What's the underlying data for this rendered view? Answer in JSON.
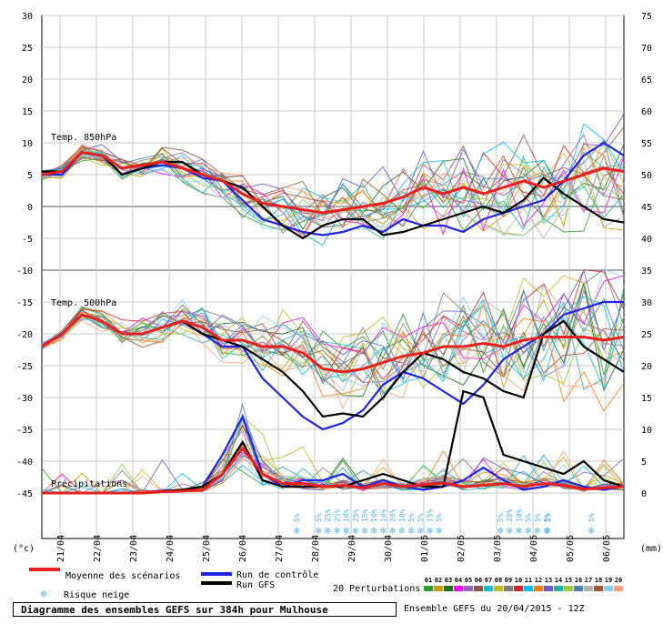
{
  "chart_data": {
    "type": "line",
    "title": "Diagramme des ensembles GEFS sur 384h pour Mulhouse",
    "source": "Ensemble GEFS du 20/04/2015 - 12Z",
    "left_axis": {
      "unit": "(°c)",
      "ticks": [
        30,
        25,
        20,
        15,
        10,
        5,
        0,
        -5,
        -10,
        -15,
        -20,
        -25,
        -30,
        -35,
        -40,
        -45
      ]
    },
    "right_axis": {
      "unit": "(mm)",
      "ticks": [
        75,
        70,
        65,
        60,
        55,
        50,
        45,
        40,
        35,
        30,
        25,
        20,
        15,
        10,
        5,
        0
      ]
    },
    "x_labels": [
      "21/04",
      "22/04",
      "23/04",
      "24/04",
      "25/04",
      "26/04",
      "27/04",
      "28/04",
      "29/04",
      "30/04",
      "01/05",
      "02/05",
      "03/05",
      "04/05",
      "05/05",
      "06/05"
    ],
    "panels": {
      "t850": "Temp. 850hPa",
      "t500": "Temp. 500hPa",
      "precip": "Précipitations"
    },
    "snow_risk": [
      {
        "x": 7.0,
        "pct": [
          "5%"
        ]
      },
      {
        "x": 7.6,
        "pct": [
          "5%",
          "25%",
          "25%",
          "10%",
          "25%",
          "15%",
          "10%",
          "10%",
          "20%",
          "10%",
          "5%",
          "5%",
          "15%",
          "5%"
        ]
      },
      {
        "x": 12.6,
        "pct": [
          "5%",
          "20%",
          "10%",
          "5%",
          "5%",
          "5%"
        ]
      },
      {
        "x": 13.9,
        "pct": [
          "5%"
        ]
      },
      {
        "x": 15.1,
        "pct": [
          "5%"
        ]
      }
    ],
    "series": [
      {
        "name": "Moyenne des scénarios",
        "color": "#e8211e",
        "t850": [
          5,
          5.5,
          8.5,
          8,
          6,
          6.5,
          7,
          6,
          5,
          4,
          2,
          0.5,
          0,
          -0.5,
          -1,
          -0.5,
          0,
          0.5,
          1.5,
          3,
          2,
          3,
          2,
          3,
          4,
          3,
          4,
          5,
          6,
          5.5
        ],
        "t500": [
          -22,
          -20,
          -17,
          -18,
          -20,
          -20,
          -19,
          -18,
          -19,
          -21,
          -21,
          -22,
          -22,
          -23,
          -25.5,
          -26,
          -25.5,
          -24.5,
          -23.5,
          -23,
          -22,
          -22,
          -21.5,
          -22,
          -21,
          -20.5,
          -20.5,
          -20.5,
          -21,
          -20.5
        ],
        "precip": [
          0,
          0,
          0,
          0,
          0,
          0,
          0.2,
          0.3,
          0.5,
          3,
          7,
          3,
          1.5,
          1.5,
          1,
          1.2,
          0.8,
          1.5,
          1,
          1.3,
          1.6,
          1,
          1.2,
          1.5,
          1,
          1.5,
          1.2,
          0.6,
          0.8,
          1
        ]
      },
      {
        "name": "Run de contrôle",
        "color": "#1e23e6",
        "t850": [
          5,
          5,
          8.5,
          8,
          5,
          6,
          6.5,
          6,
          4.5,
          4,
          1,
          -2,
          -3,
          -4,
          -4.5,
          -4,
          -3,
          -4,
          -2,
          -3,
          -3,
          -4,
          -2,
          -1,
          0,
          1,
          4,
          8,
          10,
          8
        ],
        "t500": [
          -22,
          -20,
          -17,
          -18,
          -20,
          -20,
          -19,
          -18,
          -20,
          -22,
          -22,
          -27,
          -30,
          -33,
          -35,
          -34,
          -32,
          -28,
          -26,
          -27,
          -29,
          -31,
          -28,
          -24,
          -22,
          -20,
          -17,
          -16,
          -15,
          -15
        ],
        "precip": [
          0,
          0,
          0,
          0,
          0,
          0,
          0.3,
          0.5,
          1,
          6,
          12,
          3,
          1,
          2,
          2,
          3,
          1,
          2,
          1,
          0.5,
          1,
          2,
          4,
          2,
          0.5,
          1,
          2,
          1,
          0.5,
          1
        ]
      },
      {
        "name": "Run GFS",
        "color": "#000000",
        "t850": [
          5.5,
          5.5,
          8.5,
          8,
          5,
          6,
          7,
          7,
          5,
          4,
          3,
          0,
          -3,
          -5,
          -3,
          -2,
          -2,
          -4.5,
          -4,
          -3,
          -2,
          -1,
          0,
          -1,
          1,
          4.5,
          2,
          0,
          -2,
          -2.5
        ],
        "t500": [
          -22,
          -20,
          -17,
          -18,
          -20,
          -20,
          -19,
          -18,
          -20,
          -21,
          -22,
          -24,
          -26,
          -29,
          -33,
          -32.5,
          -33,
          -30,
          -26,
          -23,
          -24,
          -26,
          -27,
          -29,
          -30,
          -20,
          -18,
          -22,
          -24,
          -26
        ],
        "precip": [
          0,
          0,
          0,
          0,
          0,
          0,
          0.3,
          0.5,
          1,
          3,
          8,
          2,
          1,
          1,
          1,
          1,
          2,
          3,
          2,
          1,
          1,
          16,
          15,
          6,
          5,
          4,
          3,
          5,
          2,
          1
        ]
      }
    ],
    "legend": {
      "mean": "Moyenne des scénarios",
      "control": "Run de contrôle",
      "gfs": "Run GFS",
      "snow": "Risque neige",
      "perturbations": "20 Perturbations"
    },
    "perturbation_ids": [
      "01",
      "02",
      "03",
      "04",
      "05",
      "06",
      "07",
      "08",
      "09",
      "10",
      "11",
      "12",
      "13",
      "14",
      "15",
      "16",
      "17",
      "18",
      "19",
      "20"
    ],
    "perturbation_colors": [
      "#2ca02c",
      "#c8a000",
      "#1c6e1c",
      "#ff00ff",
      "#9467bd",
      "#8c564b",
      "#17becf",
      "#bcbd22",
      "#7f7f7f",
      "#d62728",
      "#00bfff",
      "#ff7f0e",
      "#6a5acd",
      "#20b2aa",
      "#9acd32",
      "#4682b4",
      "#b0b0b0",
      "#a0522d",
      "#87ceeb",
      "#ffa07a"
    ],
    "snow_color": "#5ab4e6"
  }
}
